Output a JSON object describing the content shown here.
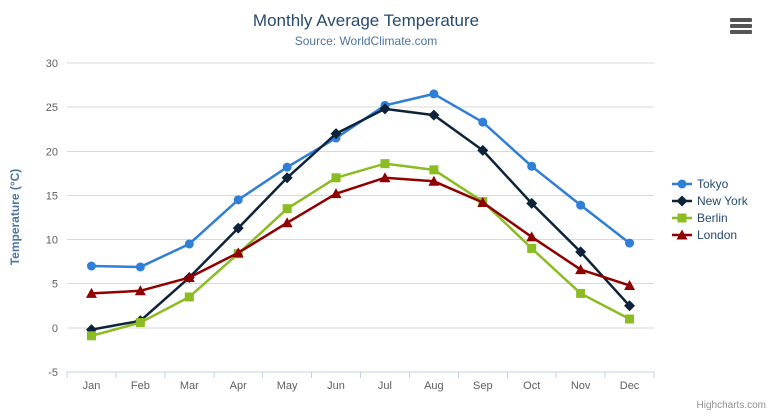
{
  "chart_data": {
    "type": "line",
    "title": "Monthly Average Temperature",
    "subtitle": "Source: WorldClimate.com",
    "xlabel": "",
    "ylabel": "Temperature (°C)",
    "ylim": [
      -5,
      30
    ],
    "ytick_step": 5,
    "grid": true,
    "legend_position": "right",
    "categories": [
      "Jan",
      "Feb",
      "Mar",
      "Apr",
      "May",
      "Jun",
      "Jul",
      "Aug",
      "Sep",
      "Oct",
      "Nov",
      "Dec"
    ],
    "series": [
      {
        "name": "Tokyo",
        "color": "#2f7ed8",
        "marker": "circle",
        "values": [
          7.0,
          6.9,
          9.5,
          14.5,
          18.2,
          21.5,
          25.2,
          26.5,
          23.3,
          18.3,
          13.9,
          9.6
        ]
      },
      {
        "name": "New York",
        "color": "#0d233a",
        "marker": "diamond",
        "values": [
          -0.2,
          0.8,
          5.7,
          11.3,
          17.0,
          22.0,
          24.8,
          24.1,
          20.1,
          14.1,
          8.6,
          2.5
        ]
      },
      {
        "name": "Berlin",
        "color": "#8bbc21",
        "marker": "square",
        "values": [
          -0.9,
          0.6,
          3.5,
          8.4,
          13.5,
          17.0,
          18.6,
          17.9,
          14.3,
          9.0,
          3.9,
          1.0
        ]
      },
      {
        "name": "London",
        "color": "#910000",
        "marker": "triangle",
        "values": [
          3.9,
          4.2,
          5.7,
          8.5,
          11.9,
          15.2,
          17.0,
          16.6,
          14.2,
          10.3,
          6.6,
          4.8
        ]
      }
    ]
  },
  "credits": {
    "label": "Highcharts.com"
  },
  "context_menu": {
    "icon": "hamburger-menu-icon"
  },
  "palette": {
    "background": "#ffffff",
    "title_color": "#274b6d",
    "subtitle_color": "#4d759e",
    "axis_title_color": "#4d759e",
    "tick_label_color": "#606060",
    "grid_color": "#d8d8d8",
    "axis_line_color": "#c0d0e0",
    "legend_text_color": "#274b6d",
    "credits_color": "#909090",
    "burger_color": "#555555"
  }
}
